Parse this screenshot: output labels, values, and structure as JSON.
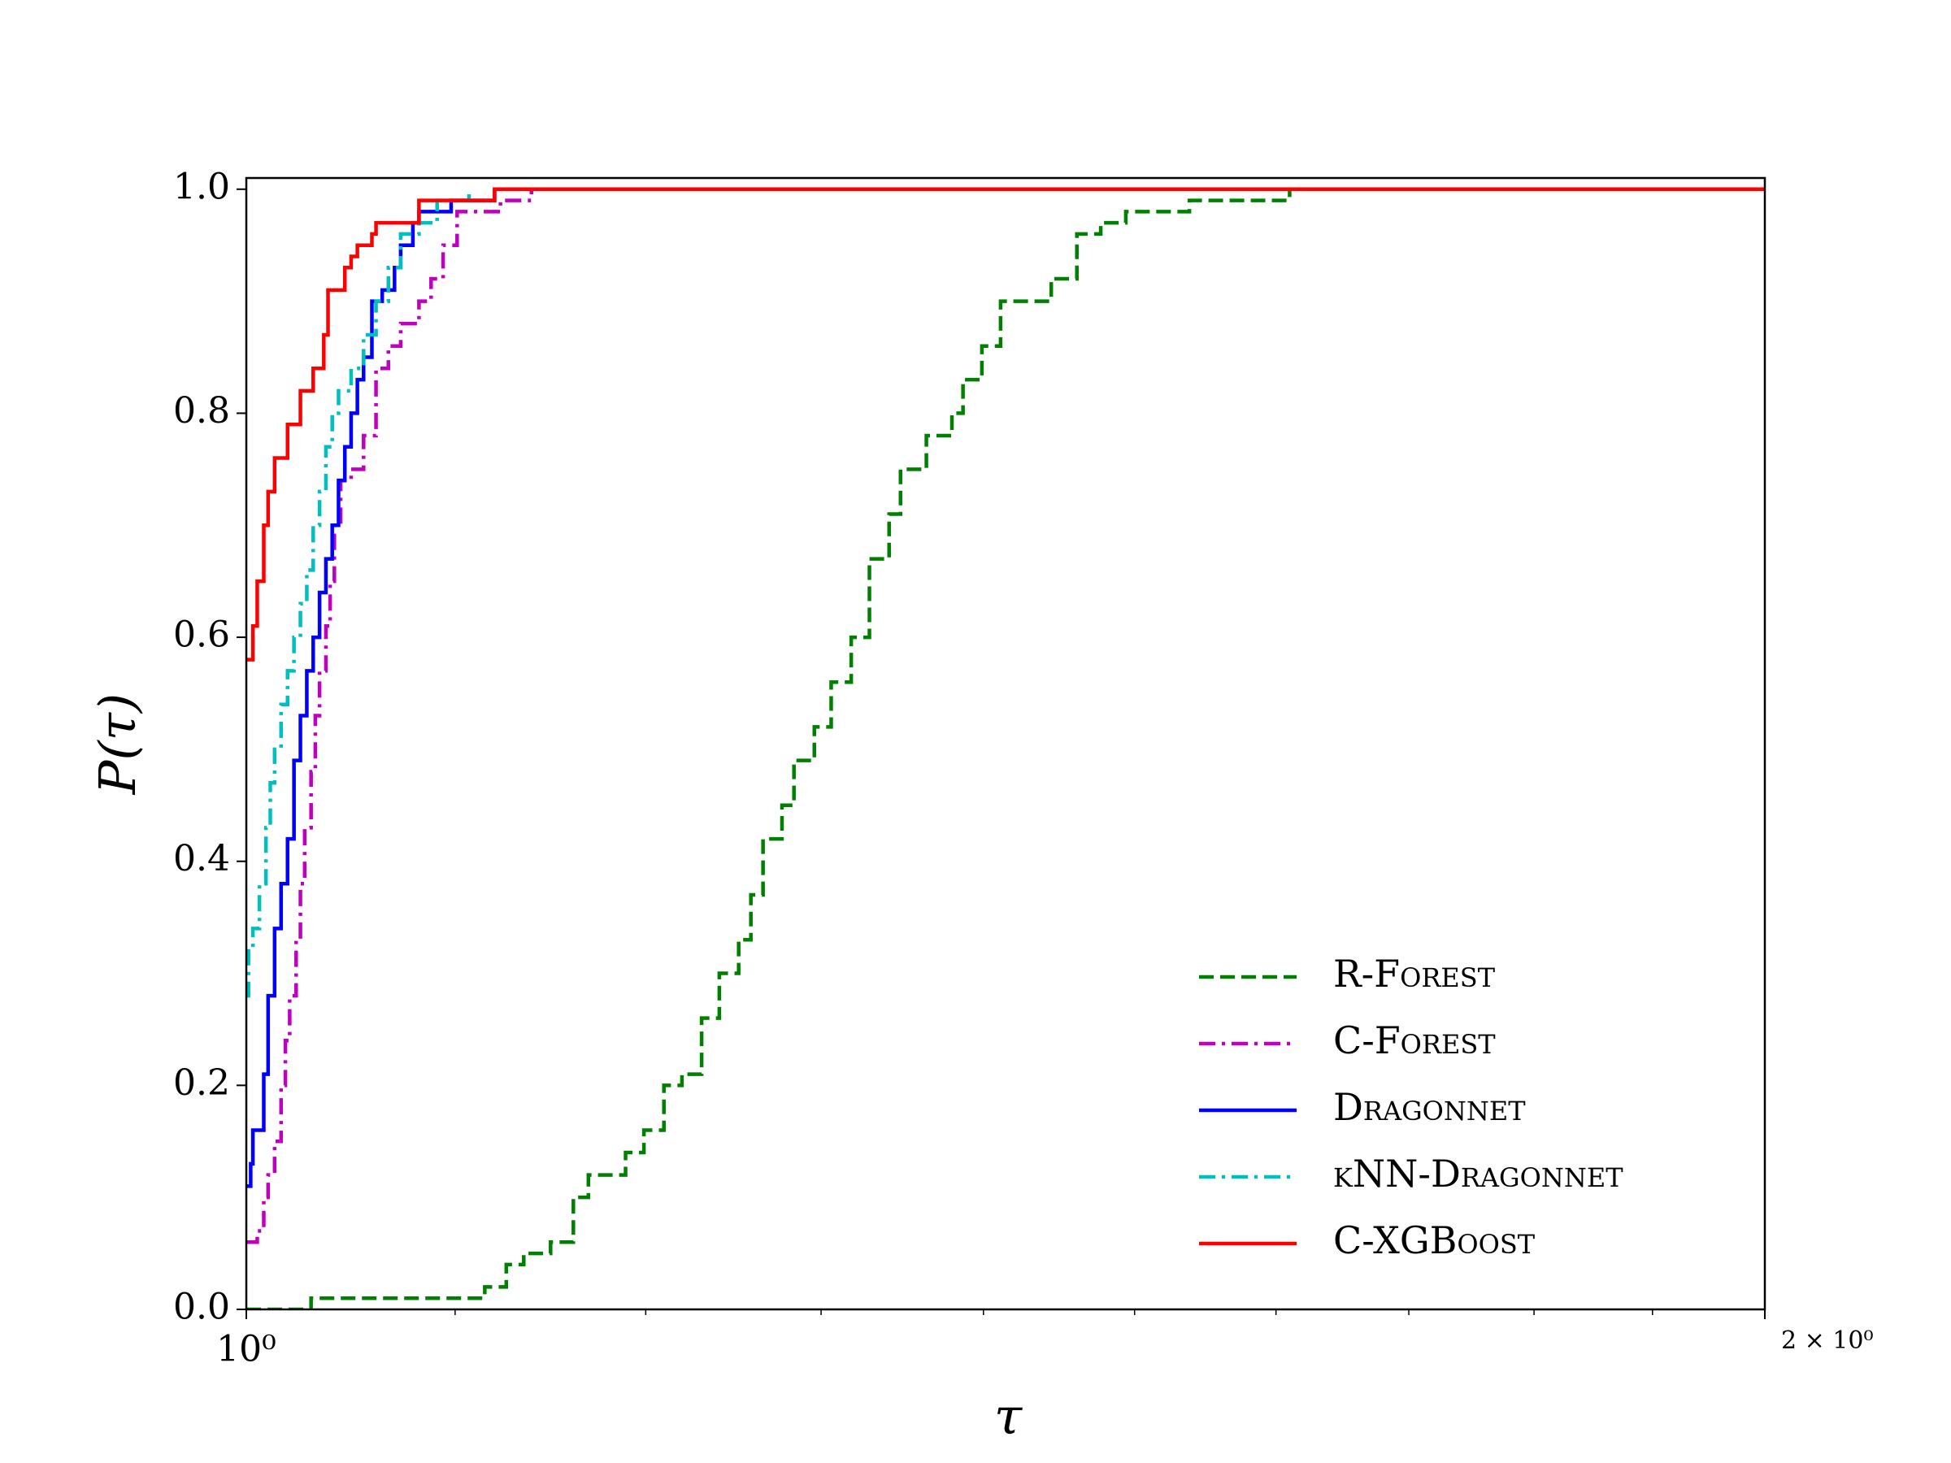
{
  "chart_data": {
    "type": "step",
    "xlabel": "τ",
    "ylabel": "P(τ)",
    "xscale": "log",
    "xlim": [
      1,
      2
    ],
    "ylim": [
      0,
      1.01
    ],
    "xticks": [
      {
        "value": 1,
        "label": "10⁰"
      },
      {
        "value": 2,
        "label": "2 × 10⁰"
      }
    ],
    "xminorticks": [
      1.1,
      1.2,
      1.3,
      1.4,
      1.5,
      1.6,
      1.7,
      1.8,
      1.9
    ],
    "yticks": [
      {
        "value": 0,
        "label": "0.0"
      },
      0.2,
      0.4,
      0.6,
      0.8,
      {
        "value": 1,
        "label": "1.0"
      }
    ],
    "grid": false,
    "legend": "lower right",
    "series": [
      {
        "name": "R-Forest",
        "color": "#008000",
        "linestyle": "dashed",
        "x": [
          1,
          1.03,
          1.115,
          1.126,
          1.135,
          1.149,
          1.161,
          1.169,
          1.189,
          1.199,
          1.21,
          1.22,
          1.231,
          1.241,
          1.252,
          1.259,
          1.266,
          1.277,
          1.284,
          1.296,
          1.306,
          1.318,
          1.329,
          1.341,
          1.348,
          1.364,
          1.38,
          1.387,
          1.399,
          1.411,
          1.444,
          1.461,
          1.477,
          1.494,
          1.538,
          1.61,
          2
        ],
        "values": [
          0,
          0.01,
          0.02,
          0.04,
          0.05,
          0.06,
          0.1,
          0.12,
          0.14,
          0.16,
          0.2,
          0.21,
          0.26,
          0.3,
          0.33,
          0.37,
          0.42,
          0.45,
          0.49,
          0.52,
          0.56,
          0.6,
          0.67,
          0.71,
          0.75,
          0.78,
          0.8,
          0.83,
          0.86,
          0.9,
          0.92,
          0.96,
          0.97,
          0.98,
          0.99,
          1,
          1
        ]
      },
      {
        "name": "C-Forest",
        "color": "#bf00bf",
        "linestyle": "dashdot",
        "x": [
          1,
          1.005,
          1.008,
          1.01,
          1.013,
          1.016,
          1.018,
          1.02,
          1.023,
          1.025,
          1.027,
          1.03,
          1.032,
          1.034,
          1.037,
          1.039,
          1.041,
          1.044,
          1.049,
          1.055,
          1.061,
          1.067,
          1.073,
          1.082,
          1.088,
          1.094,
          1.101,
          1.123,
          1.139
        ],
        "values": [
          0.06,
          0.07,
          0.1,
          0.12,
          0.15,
          0.2,
          0.24,
          0.28,
          0.33,
          0.38,
          0.43,
          0.48,
          0.53,
          0.57,
          0.61,
          0.65,
          0.7,
          0.74,
          0.75,
          0.78,
          0.84,
          0.86,
          0.88,
          0.9,
          0.92,
          0.95,
          0.98,
          0.99,
          1
        ]
      },
      {
        "name": "Dragonnet",
        "color": "#0000ff",
        "linestyle": "solid",
        "x": [
          1,
          1.002,
          1.003,
          1.008,
          1.01,
          1.013,
          1.016,
          1.019,
          1.022,
          1.025,
          1.028,
          1.031,
          1.034,
          1.037,
          1.04,
          1.043,
          1.046,
          1.049,
          1.052,
          1.055,
          1.059,
          1.064,
          1.07,
          1.073,
          1.079,
          1.082,
          1.098,
          1.12
        ],
        "values": [
          0.11,
          0.13,
          0.16,
          0.21,
          0.28,
          0.34,
          0.38,
          0.42,
          0.49,
          0.53,
          0.57,
          0.6,
          0.64,
          0.67,
          0.7,
          0.74,
          0.77,
          0.8,
          0.83,
          0.85,
          0.9,
          0.91,
          0.93,
          0.95,
          0.97,
          0.98,
          0.99,
          1
        ]
      },
      {
        "name": "kNN-Dragonnet",
        "color": "#00bfbf",
        "linestyle": "dashdot",
        "x": [
          1,
          1.001,
          1.003,
          1.006,
          1.009,
          1.011,
          1.013,
          1.016,
          1.019,
          1.022,
          1.025,
          1.028,
          1.031,
          1.034,
          1.037,
          1.04,
          1.043,
          1.049,
          1.055,
          1.061,
          1.067,
          1.073,
          1.082,
          1.091,
          1.107
        ],
        "values": [
          0.28,
          0.32,
          0.34,
          0.38,
          0.43,
          0.47,
          0.5,
          0.54,
          0.57,
          0.6,
          0.63,
          0.66,
          0.7,
          0.73,
          0.77,
          0.8,
          0.82,
          0.84,
          0.87,
          0.9,
          0.93,
          0.96,
          0.97,
          0.99,
          1
        ]
      },
      {
        "name": "C-XGBoost",
        "color": "#ff0000",
        "linestyle": "solid",
        "x": [
          1,
          1.003,
          1.005,
          1.008,
          1.01,
          1.013,
          1.019,
          1.025,
          1.031,
          1.036,
          1.038,
          1.046,
          1.049,
          1.052,
          1.059,
          1.061,
          1.082,
          1.12,
          2
        ],
        "values": [
          0.58,
          0.61,
          0.65,
          0.7,
          0.73,
          0.76,
          0.79,
          0.82,
          0.84,
          0.87,
          0.91,
          0.93,
          0.94,
          0.95,
          0.96,
          0.97,
          0.99,
          1,
          1
        ]
      }
    ]
  }
}
